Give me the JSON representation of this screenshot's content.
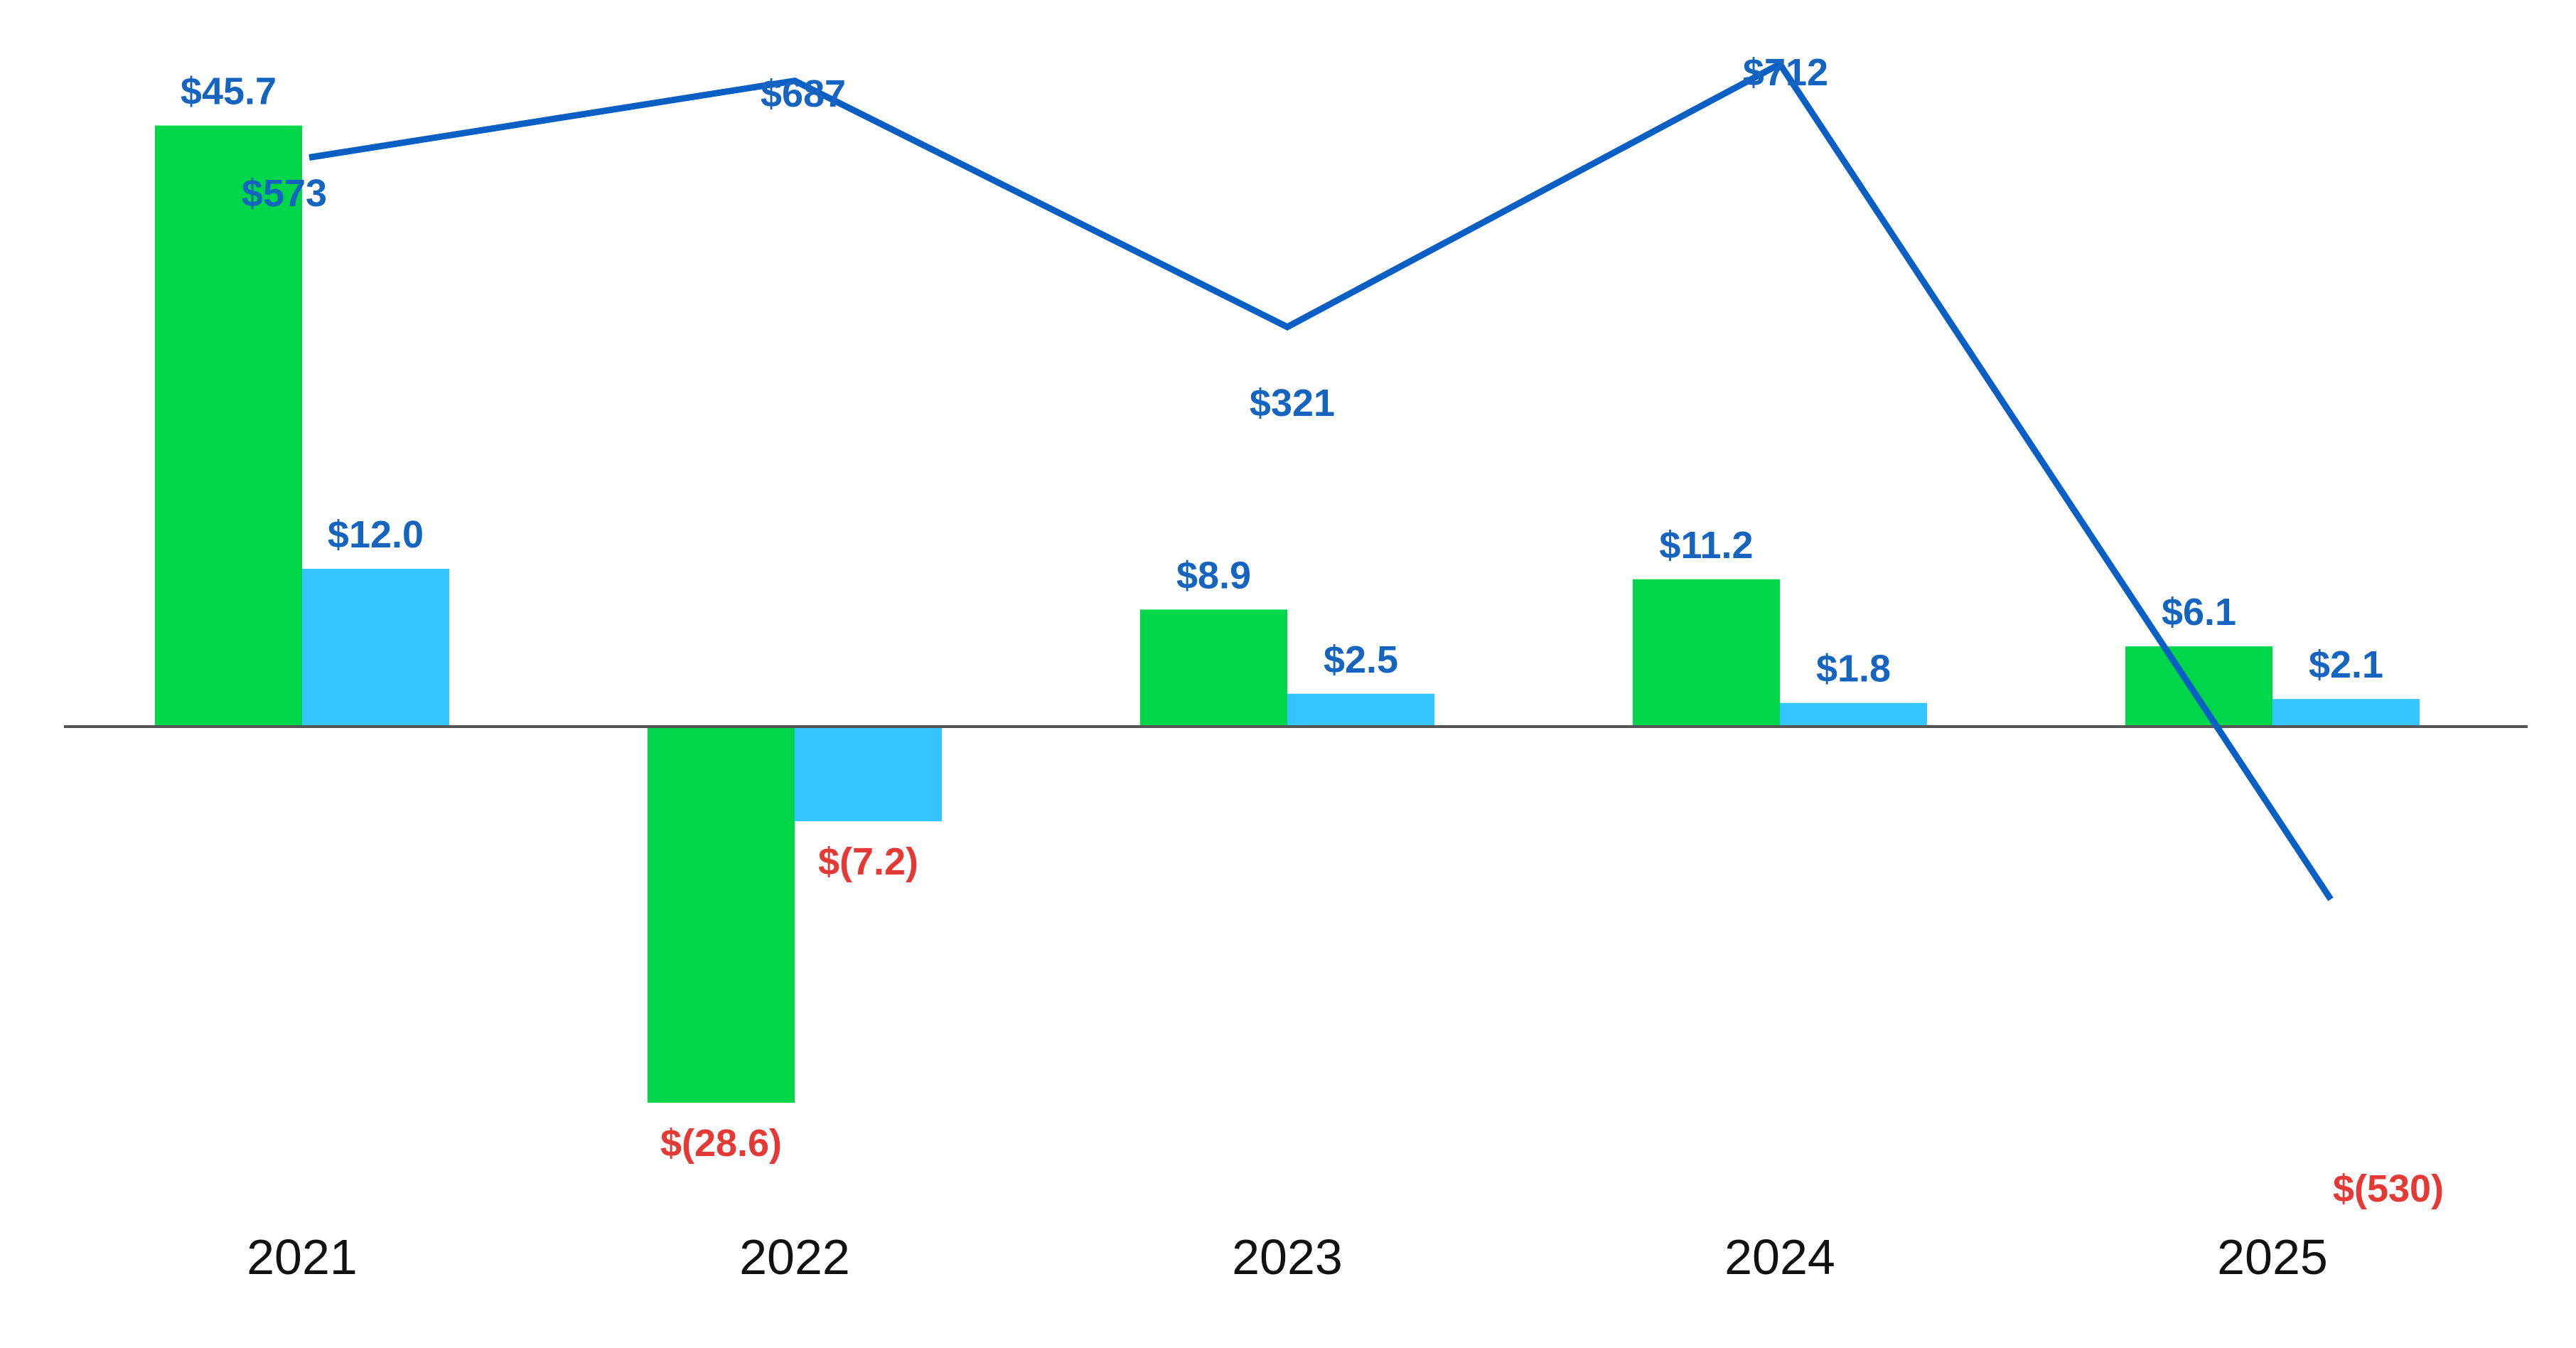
{
  "chart_data": {
    "type": "bar",
    "categories": [
      "2021",
      "2022",
      "2023",
      "2024",
      "2025"
    ],
    "series": [
      {
        "type": "bar",
        "color": "#00d64a",
        "values": [
          45.7,
          -28.6,
          8.9,
          11.2,
          6.1
        ],
        "labels": [
          "$45.7",
          "$(28.6)",
          "$8.9",
          "$11.2",
          "$6.1"
        ]
      },
      {
        "type": "bar",
        "color": "#33c5ff",
        "values": [
          12.0,
          -7.2,
          2.5,
          1.8,
          2.1
        ],
        "labels": [
          "$12.0",
          "$(7.2)",
          "$2.5",
          "$1.8",
          "$2.1"
        ]
      },
      {
        "type": "line",
        "color": "#0a5fc4",
        "values": [
          573,
          687,
          321,
          712,
          -530
        ],
        "labels": [
          "$573",
          "$687",
          "$321",
          "$712",
          "$(530)"
        ]
      }
    ],
    "colors": {
      "positive_label": "#1565c0",
      "negative_label": "#e53935",
      "baseline": "#555555"
    },
    "grid": false,
    "legend": "none"
  }
}
